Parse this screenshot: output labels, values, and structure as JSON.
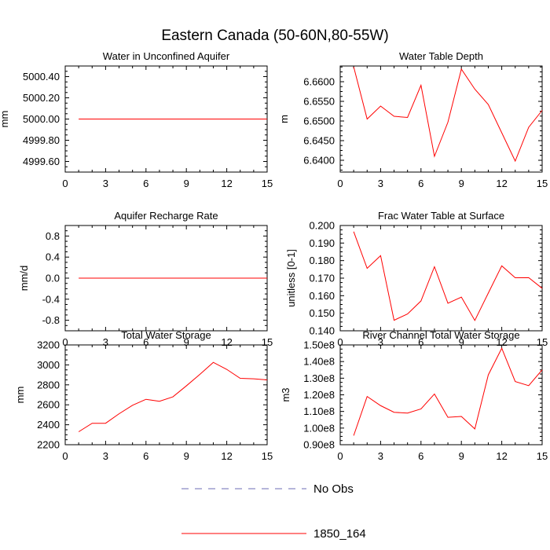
{
  "title": "Eastern Canada (50-60N,80-55W)",
  "colors": {
    "series": "#ff0000",
    "noobs": "#6b6bb5",
    "axis": "#000000"
  },
  "legend": {
    "entries": [
      {
        "label": "No Obs",
        "style": "dashed",
        "color": "#6b6bb5"
      },
      {
        "label": "1850_164",
        "style": "solid",
        "color": "#ff0000"
      }
    ]
  },
  "chart_data": [
    {
      "type": "line",
      "title": "Water in Unconfined Aquifer",
      "ylabel": "mm",
      "xlim": [
        0,
        15
      ],
      "xticks": [
        0,
        3,
        6,
        9,
        12,
        15
      ],
      "ylim": [
        4999.5,
        5000.5
      ],
      "yticks": [
        4999.6,
        4999.8,
        5000.0,
        5000.2,
        5000.4
      ],
      "ytick_labels": [
        "4999.60",
        "4999.80",
        "5000.00",
        "5000.20",
        "5000.40"
      ],
      "x": [
        1,
        2,
        3,
        4,
        5,
        6,
        7,
        8,
        9,
        10,
        11,
        12,
        13,
        14,
        15
      ],
      "series": [
        {
          "name": "1850_164",
          "values": [
            5000.0,
            5000.0,
            5000.0,
            5000.0,
            5000.0,
            5000.0,
            5000.0,
            5000.0,
            5000.0,
            5000.0,
            5000.0,
            5000.0,
            5000.0,
            5000.0,
            5000.0
          ]
        }
      ]
    },
    {
      "type": "line",
      "title": "Water Table Depth",
      "ylabel": "m",
      "xlim": [
        0,
        15
      ],
      "xticks": [
        0,
        3,
        6,
        9,
        12,
        15
      ],
      "ylim": [
        6.637,
        6.664
      ],
      "yticks": [
        6.64,
        6.645,
        6.65,
        6.655,
        6.66
      ],
      "ytick_labels": [
        "6.6400",
        "6.6450",
        "6.6500",
        "6.6550",
        "6.6600"
      ],
      "x": [
        1,
        2,
        3,
        4,
        5,
        6,
        7,
        8,
        9,
        10,
        11,
        12,
        13,
        14,
        15
      ],
      "series": [
        {
          "name": "1850_164",
          "values": [
            6.6638,
            6.6505,
            6.6538,
            6.6512,
            6.6509,
            6.6591,
            6.641,
            6.6497,
            6.6632,
            6.6581,
            6.6542,
            6.647,
            6.6398,
            6.6484,
            6.6527
          ]
        }
      ]
    },
    {
      "type": "line",
      "title": "Aquifer Recharge Rate",
      "ylabel": "mm/d",
      "xlim": [
        0,
        15
      ],
      "xticks": [
        0,
        3,
        6,
        9,
        12,
        15
      ],
      "ylim": [
        -1.0,
        1.0
      ],
      "yticks": [
        -0.8,
        -0.4,
        0.0,
        0.4,
        0.8
      ],
      "ytick_labels": [
        "-0.8",
        "-0.4",
        "0.0",
        "0.4",
        "0.8"
      ],
      "x": [
        1,
        2,
        3,
        4,
        5,
        6,
        7,
        8,
        9,
        10,
        11,
        12,
        13,
        14,
        15
      ],
      "series": [
        {
          "name": "1850_164",
          "values": [
            0,
            0,
            0,
            0,
            0,
            0,
            0,
            0,
            0,
            0,
            0,
            0,
            0,
            0,
            0
          ]
        }
      ]
    },
    {
      "type": "line",
      "title": "Frac Water Table at Surface",
      "ylabel": "unitless [0-1]",
      "xlim": [
        0,
        15
      ],
      "xticks": [
        0,
        3,
        6,
        9,
        12,
        15
      ],
      "ylim": [
        0.14,
        0.2
      ],
      "yticks": [
        0.14,
        0.15,
        0.16,
        0.17,
        0.18,
        0.19,
        0.2
      ],
      "ytick_labels": [
        "0.140",
        "0.150",
        "0.160",
        "0.170",
        "0.180",
        "0.190",
        "0.200"
      ],
      "x": [
        1,
        2,
        3,
        4,
        5,
        6,
        7,
        8,
        9,
        10,
        11,
        12,
        13,
        14,
        15
      ],
      "series": [
        {
          "name": "1850_164",
          "values": [
            0.1965,
            0.1756,
            0.1828,
            0.146,
            0.1496,
            0.157,
            0.1765,
            0.1557,
            0.1592,
            0.1459,
            0.1615,
            0.177,
            0.1702,
            0.1703,
            0.1642
          ]
        }
      ]
    },
    {
      "type": "line",
      "title": "Total Water Storage",
      "ylabel": "mm",
      "xlim": [
        0,
        15
      ],
      "xticks": [
        0,
        3,
        6,
        9,
        12,
        15
      ],
      "ylim": [
        2200,
        3200
      ],
      "yticks": [
        2200,
        2400,
        2600,
        2800,
        3000,
        3200
      ],
      "ytick_labels": [
        "2200",
        "2400",
        "2600",
        "2800",
        "3000",
        "3200"
      ],
      "x": [
        1,
        2,
        3,
        4,
        5,
        6,
        7,
        8,
        9,
        10,
        11,
        12,
        13,
        14,
        15
      ],
      "series": [
        {
          "name": "1850_164",
          "values": [
            2330,
            2415,
            2415,
            2510,
            2595,
            2655,
            2635,
            2680,
            2790,
            2905,
            3025,
            2955,
            2865,
            2860,
            2850
          ]
        }
      ]
    },
    {
      "type": "line",
      "title": "River Channel Total Water Storage",
      "ylabel": "m3",
      "xlim": [
        0,
        15
      ],
      "xticks": [
        0,
        3,
        6,
        9,
        12,
        15
      ],
      "ylim": [
        90000000,
        150000000
      ],
      "yticks": [
        90000000,
        100000000,
        110000000,
        120000000,
        130000000,
        140000000,
        150000000
      ],
      "ytick_labels": [
        "0.90e8",
        "1.00e8",
        "1.10e8",
        "1.20e8",
        "1.30e8",
        "1.40e8",
        "1.50e8"
      ],
      "x": [
        1,
        2,
        3,
        4,
        5,
        6,
        7,
        8,
        9,
        10,
        11,
        12,
        13,
        14,
        15
      ],
      "series": [
        {
          "name": "1850_164",
          "values": [
            95500000,
            119000000,
            113500000,
            109500000,
            109000000,
            111500000,
            120500000,
            106500000,
            107000000,
            99500000,
            132000000,
            148000000,
            128000000,
            125500000,
            135000000
          ]
        }
      ]
    }
  ]
}
